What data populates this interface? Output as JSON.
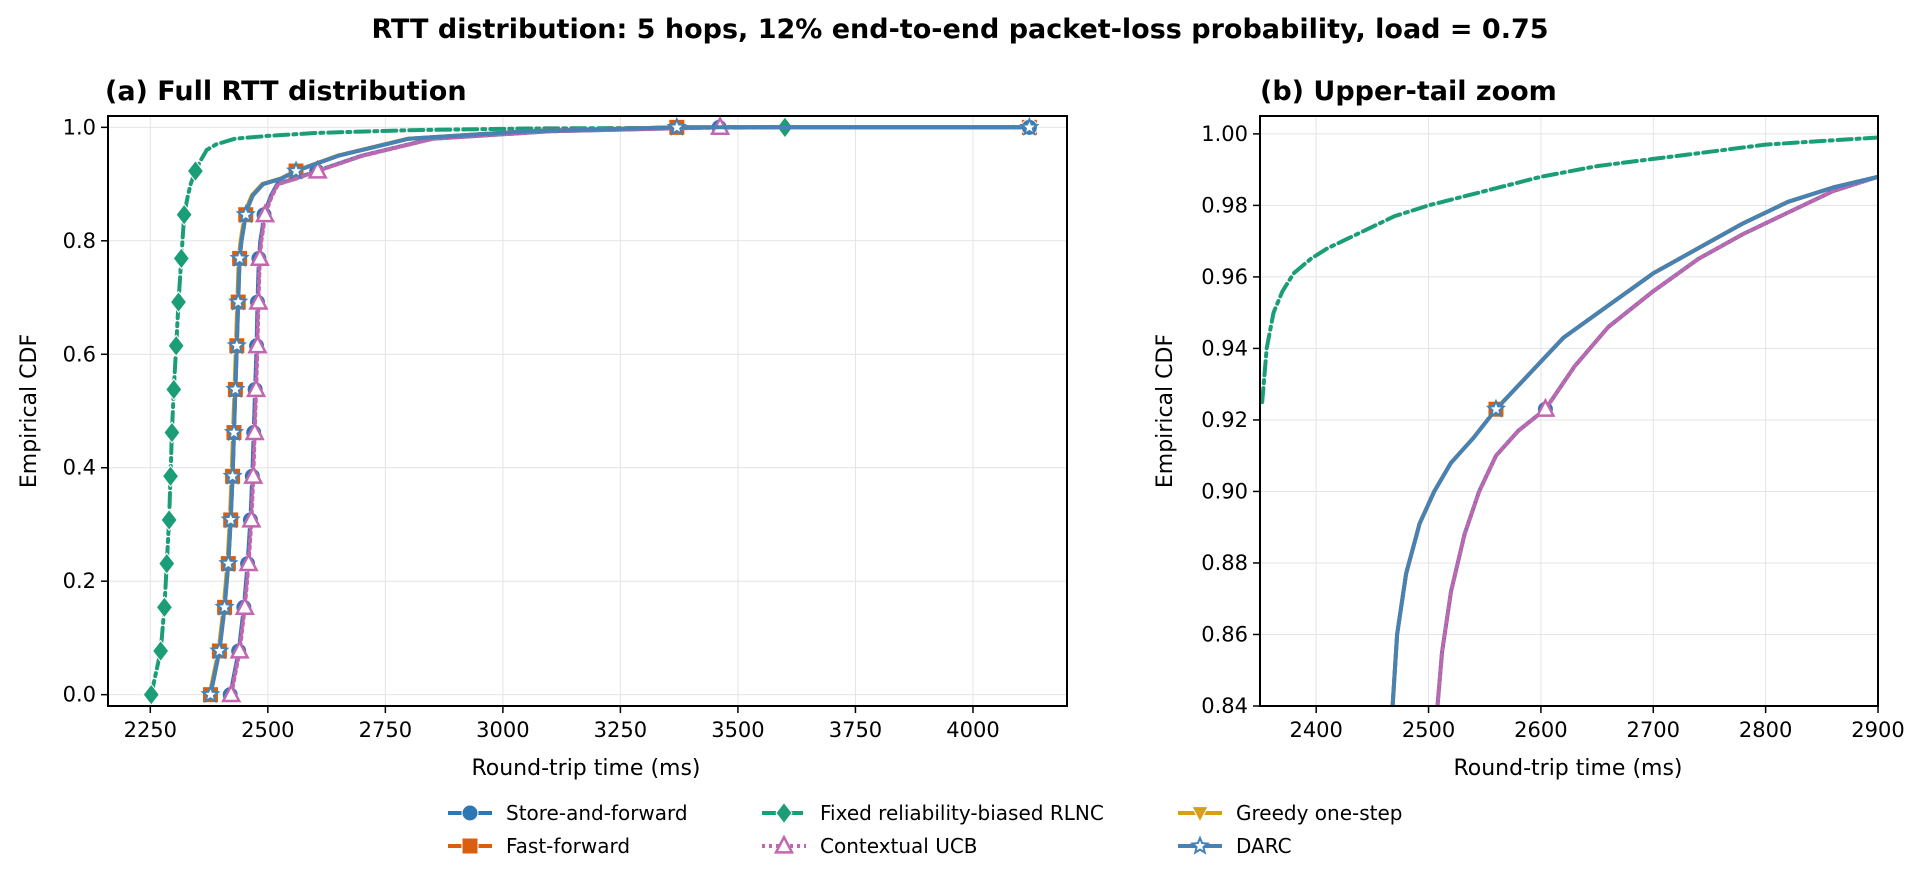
{
  "figure": {
    "suptitle": "RTT distribution: 5 hops, 12% end-to-end packet-loss probability, load = 0.75"
  },
  "legend": [
    {
      "name": "Store-and-forward",
      "color": "#2e77b5",
      "marker": "circle",
      "dash": "solid"
    },
    {
      "name": "Fast-forward",
      "color": "#d95f0e",
      "marker": "square",
      "dash": "solid"
    },
    {
      "name": "Fixed reliability-biased RLNC",
      "color": "#1b9e77",
      "marker": "diamond",
      "dash": "dashdot"
    },
    {
      "name": "Contextual UCB",
      "color": "#c266b0",
      "marker": "triangle-up-open",
      "dash": "dotted"
    },
    {
      "name": "Greedy one-step",
      "color": "#d4a017",
      "marker": "triangle-down",
      "dash": "solid"
    },
    {
      "name": "DARC",
      "color": "#4682b4",
      "marker": "star",
      "dash": "solid"
    }
  ],
  "chart_data": [
    {
      "id": "a",
      "type": "line",
      "title": "(a) Full RTT distribution",
      "xlabel": "Round-trip time (ms)",
      "ylabel": "Empirical CDF",
      "xlim": [
        2160,
        4200
      ],
      "ylim": [
        -0.02,
        1.02
      ],
      "xticks": [
        2250,
        2500,
        2750,
        3000,
        3250,
        3500,
        3750,
        4000
      ],
      "yticks": [
        0.0,
        0.2,
        0.4,
        0.6,
        0.8,
        1.0
      ],
      "yticklabels": [
        "0.0",
        "0.2",
        "0.4",
        "0.6",
        "0.8",
        "1.0"
      ],
      "grid": true,
      "series": [
        {
          "name": "Store-and-forward",
          "x": [
            2420,
            2438,
            2449,
            2457,
            2463,
            2467,
            2470,
            2473,
            2476,
            2478,
            2481,
            2484,
            2488,
            2492,
            2498,
            2507,
            2520,
            2560,
            2604,
            2700,
            2850,
            3100,
            3460,
            4120
          ],
          "y": [
            0.0,
            0.077,
            0.154,
            0.231,
            0.308,
            0.385,
            0.462,
            0.538,
            0.615,
            0.692,
            0.769,
            0.8,
            0.82,
            0.846,
            0.86,
            0.88,
            0.9,
            0.91,
            0.923,
            0.95,
            0.98,
            0.993,
            1.0,
            1.0
          ]
        },
        {
          "name": "Fast-forward",
          "x": [
            2378,
            2397,
            2408,
            2416,
            2421,
            2425,
            2428,
            2431,
            2434,
            2437,
            2440,
            2444,
            2448,
            2453,
            2458,
            2468,
            2490,
            2530,
            2560,
            2650,
            2800,
            3050,
            3370,
            4120
          ],
          "y": [
            0.0,
            0.077,
            0.154,
            0.231,
            0.308,
            0.385,
            0.462,
            0.538,
            0.615,
            0.692,
            0.769,
            0.8,
            0.82,
            0.846,
            0.86,
            0.88,
            0.9,
            0.91,
            0.923,
            0.95,
            0.98,
            0.993,
            1.0,
            1.0
          ]
        },
        {
          "name": "Fixed reliability-biased RLNC",
          "x": [
            2252,
            2272,
            2280,
            2285,
            2290,
            2293,
            2296,
            2300,
            2305,
            2310,
            2316,
            2322,
            2330,
            2336,
            2346,
            2356,
            2370,
            2390,
            2430,
            2500,
            2600,
            2800,
            3050,
            3350,
            3600
          ],
          "y": [
            0.0,
            0.077,
            0.154,
            0.231,
            0.308,
            0.385,
            0.462,
            0.538,
            0.615,
            0.692,
            0.769,
            0.846,
            0.88,
            0.9,
            0.923,
            0.94,
            0.96,
            0.97,
            0.98,
            0.985,
            0.99,
            0.995,
            0.998,
            0.999,
            1.0
          ]
        },
        {
          "name": "Contextual UCB",
          "x": [
            2422,
            2440,
            2451,
            2459,
            2465,
            2469,
            2472,
            2475,
            2478,
            2480,
            2483,
            2486,
            2490,
            2494,
            2500,
            2509,
            2522,
            2562,
            2606,
            2702,
            2852,
            3102,
            3462
          ],
          "y": [
            0.0,
            0.077,
            0.154,
            0.231,
            0.308,
            0.385,
            0.462,
            0.538,
            0.615,
            0.692,
            0.769,
            0.8,
            0.82,
            0.846,
            0.86,
            0.88,
            0.9,
            0.91,
            0.923,
            0.95,
            0.98,
            0.993,
            1.0
          ]
        },
        {
          "name": "Greedy one-step",
          "x": [
            2376,
            2395,
            2406,
            2414,
            2419,
            2423,
            2426,
            2429,
            2432,
            2435,
            2438,
            2442,
            2446,
            2451,
            2456,
            2466,
            2488,
            2528,
            2558,
            2648,
            2798,
            3048,
            3368
          ],
          "y": [
            0.0,
            0.077,
            0.154,
            0.231,
            0.308,
            0.385,
            0.462,
            0.538,
            0.615,
            0.692,
            0.769,
            0.8,
            0.82,
            0.846,
            0.86,
            0.88,
            0.9,
            0.91,
            0.923,
            0.95,
            0.98,
            0.993,
            1.0
          ]
        },
        {
          "name": "DARC",
          "x": [
            2378,
            2397,
            2408,
            2416,
            2421,
            2425,
            2428,
            2431,
            2434,
            2437,
            2440,
            2444,
            2448,
            2453,
            2458,
            2468,
            2490,
            2530,
            2560,
            2650,
            2800,
            3050,
            3370,
            4120
          ],
          "y": [
            0.0,
            0.077,
            0.154,
            0.231,
            0.308,
            0.385,
            0.462,
            0.538,
            0.615,
            0.692,
            0.769,
            0.8,
            0.82,
            0.846,
            0.86,
            0.88,
            0.9,
            0.91,
            0.923,
            0.95,
            0.98,
            0.993,
            1.0,
            1.0
          ]
        }
      ]
    },
    {
      "id": "b",
      "type": "line",
      "title": "(b) Upper-tail zoom",
      "xlabel": "Round-trip time (ms)",
      "ylabel": "Empirical CDF",
      "xlim": [
        2350,
        2900
      ],
      "ylim": [
        0.84,
        1.005
      ],
      "xticks": [
        2400,
        2500,
        2600,
        2700,
        2800,
        2900
      ],
      "yticks": [
        0.84,
        0.86,
        0.88,
        0.9,
        0.92,
        0.94,
        0.96,
        0.98,
        1.0
      ],
      "yticklabels": [
        "0.84",
        "0.86",
        "0.88",
        "0.90",
        "0.92",
        "0.94",
        "0.96",
        "0.98",
        "1.00"
      ],
      "grid": true,
      "series": [
        {
          "name": "Store-and-forward",
          "x": [
            2508,
            2512,
            2520,
            2532,
            2545,
            2560,
            2580,
            2604,
            2630,
            2660,
            2700,
            2740,
            2780,
            2820,
            2860,
            2900
          ],
          "y": [
            0.84,
            0.855,
            0.872,
            0.888,
            0.9,
            0.91,
            0.917,
            0.923,
            0.935,
            0.946,
            0.956,
            0.965,
            0.972,
            0.978,
            0.984,
            0.988
          ]
        },
        {
          "name": "Fast-forward",
          "x": [
            2468,
            2472,
            2480,
            2492,
            2505,
            2520,
            2540,
            2560,
            2590,
            2620,
            2660,
            2700,
            2740,
            2780,
            2820,
            2860,
            2900
          ],
          "y": [
            0.84,
            0.86,
            0.877,
            0.891,
            0.9,
            0.908,
            0.915,
            0.923,
            0.933,
            0.943,
            0.952,
            0.961,
            0.968,
            0.975,
            0.981,
            0.985,
            0.988
          ]
        },
        {
          "name": "Fixed reliability-biased RLNC",
          "x": [
            2352,
            2356,
            2362,
            2370,
            2380,
            2395,
            2410,
            2430,
            2450,
            2470,
            2500,
            2550,
            2600,
            2650,
            2700,
            2750,
            2800,
            2850,
            2900
          ],
          "y": [
            0.925,
            0.94,
            0.95,
            0.956,
            0.961,
            0.965,
            0.968,
            0.971,
            0.974,
            0.977,
            0.98,
            0.984,
            0.988,
            0.991,
            0.993,
            0.995,
            0.997,
            0.998,
            0.999
          ]
        },
        {
          "name": "Contextual UCB",
          "x": [
            2508,
            2512,
            2520,
            2532,
            2545,
            2560,
            2580,
            2604,
            2630,
            2660,
            2700,
            2740,
            2780,
            2820,
            2860,
            2900
          ],
          "y": [
            0.84,
            0.855,
            0.872,
            0.888,
            0.9,
            0.91,
            0.917,
            0.923,
            0.935,
            0.946,
            0.956,
            0.965,
            0.972,
            0.978,
            0.984,
            0.988
          ]
        },
        {
          "name": "Greedy one-step",
          "x": [
            2468,
            2472,
            2480,
            2492,
            2505,
            2520,
            2540,
            2560,
            2590,
            2620,
            2660,
            2700,
            2740,
            2780,
            2820,
            2860,
            2900
          ],
          "y": [
            0.84,
            0.86,
            0.877,
            0.891,
            0.9,
            0.908,
            0.915,
            0.923,
            0.933,
            0.943,
            0.952,
            0.961,
            0.968,
            0.975,
            0.981,
            0.985,
            0.988
          ]
        },
        {
          "name": "DARC",
          "x": [
            2468,
            2472,
            2480,
            2492,
            2505,
            2520,
            2540,
            2560,
            2590,
            2620,
            2660,
            2700,
            2740,
            2780,
            2820,
            2860,
            2900
          ],
          "y": [
            0.84,
            0.86,
            0.877,
            0.891,
            0.9,
            0.908,
            0.915,
            0.923,
            0.933,
            0.943,
            0.952,
            0.961,
            0.968,
            0.975,
            0.981,
            0.985,
            0.988
          ]
        }
      ]
    }
  ]
}
